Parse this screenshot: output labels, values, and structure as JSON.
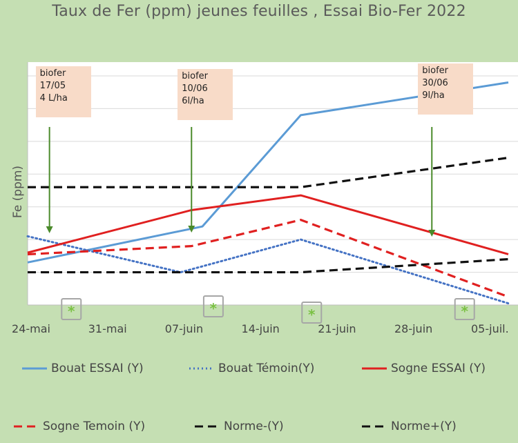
{
  "chart_data": {
    "type": "line",
    "title": "Taux de Fer (ppm) jeunes feuilles , Essai Bio-Fer 2022",
    "ylabel": "Fe (ppm)",
    "xlabel": "",
    "x_tick_labels": [
      "24-mai",
      "31-mai",
      "07-juin",
      "14-juin",
      "21-juin",
      "28-juin",
      "05-juil."
    ],
    "x_ticks_days": [
      0,
      7,
      14,
      21,
      28,
      35,
      42
    ],
    "x_start": "24-mai",
    "ylim": [
      0,
      7
    ],
    "grid": true,
    "legend_position": "bottom",
    "series": [
      {
        "name": "Bouat ESSAI (Y)",
        "color": "#5b9bd5",
        "style": "solid",
        "x": [
          0,
          16,
          25,
          44
        ],
        "y": [
          1.3,
          2.4,
          5.8,
          6.8
        ]
      },
      {
        "name": "Bouat Témoin(Y)",
        "color": "#4472c4",
        "style": "dotted",
        "x": [
          0,
          14,
          25,
          44
        ],
        "y": [
          2.1,
          1.0,
          2.0,
          0.05
        ]
      },
      {
        "name": "Sogne ESSAI (Y)",
        "color": "#e02020",
        "style": "solid",
        "x": [
          0,
          15,
          25,
          44
        ],
        "y": [
          1.6,
          2.9,
          3.35,
          1.55
        ]
      },
      {
        "name": "Sogne Temoin (Y)",
        "color": "#e02020",
        "style": "dashed",
        "x": [
          0,
          15,
          25,
          44
        ],
        "y": [
          1.55,
          1.8,
          2.6,
          0.25
        ]
      },
      {
        "name": "Norme-(Y)",
        "color": "#111111",
        "style": "dashed",
        "x": [
          0,
          14,
          25,
          44
        ],
        "y": [
          1.0,
          1.0,
          1.0,
          1.4
        ]
      },
      {
        "name": "Norme+(Y)",
        "color": "#111111",
        "style": "dashed",
        "x": [
          0,
          14,
          25,
          44
        ],
        "y": [
          3.6,
          3.6,
          3.6,
          4.5
        ]
      }
    ],
    "annotations": [
      {
        "lines": [
          "biofer",
          "17/05",
          "4 L/ha"
        ],
        "arrow_day": 2
      },
      {
        "lines": [
          "biofer",
          "10/06",
          "6l/ha"
        ],
        "arrow_day": 15
      },
      {
        "lines": [
          "biofer",
          "30/06",
          "9l/ha"
        ],
        "arrow_day": 37
      }
    ],
    "markers": {
      "symbol": "*",
      "color": "#7ac143",
      "days": [
        4,
        17,
        26,
        40
      ]
    }
  }
}
